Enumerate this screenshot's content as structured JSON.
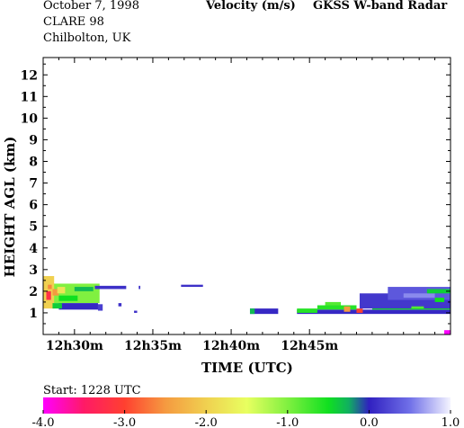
{
  "header": {
    "date": "October   7, 1998",
    "campaign": "CLARE 98",
    "site": "Chilbolton, UK",
    "quantity": "Velocity (m/s)",
    "instrument": "GKSS  W-band Radar"
  },
  "footer": {
    "start_label": "Start:  1228 UTC"
  },
  "colors": {
    "axis": "#000000",
    "background": "#ffffff"
  },
  "chart_data": {
    "type": "heatmap",
    "title": "Velocity (m/s)",
    "xlabel": "TIME (UTC)",
    "ylabel": "HEIGHT AGL (km)",
    "x_unit": "minutes after 12h28 UTC",
    "xlim": [
      0,
      26
    ],
    "ylim": [
      0,
      12.8
    ],
    "x_ticks": [
      {
        "value": 2,
        "label": "12h30m"
      },
      {
        "value": 7,
        "label": "12h35m"
      },
      {
        "value": 12,
        "label": "12h40m"
      },
      {
        "value": 17,
        "label": "12h45m"
      }
    ],
    "y_ticks": [
      1,
      2,
      3,
      4,
      5,
      6,
      7,
      8,
      9,
      10,
      11,
      12
    ],
    "colorbar": {
      "range": [
        -4.0,
        1.0
      ],
      "ticks": [
        "-4.0",
        "-3.0",
        "-2.0",
        "-1.0",
        "0.0",
        "1.0"
      ],
      "stops": [
        {
          "value": -4.0,
          "color": "#ff00ff"
        },
        {
          "value": -3.5,
          "color": "#ff1a66"
        },
        {
          "value": -3.0,
          "color": "#ff4030"
        },
        {
          "value": -2.5,
          "color": "#f59a40"
        },
        {
          "value": -2.0,
          "color": "#f0d050"
        },
        {
          "value": -1.5,
          "color": "#e8ff60"
        },
        {
          "value": -1.0,
          "color": "#80f040"
        },
        {
          "value": -0.5,
          "color": "#10e020"
        },
        {
          "value": -0.25,
          "color": "#10b060"
        },
        {
          "value": 0.0,
          "color": "#3020c0"
        },
        {
          "value": 0.5,
          "color": "#7070e8"
        },
        {
          "value": 1.0,
          "color": "#f4f4ff"
        }
      ]
    },
    "echoes": [
      {
        "t0": 0.0,
        "t1": 3.6,
        "h0": 1.45,
        "h1": 2.35,
        "v": -1.0
      },
      {
        "t0": 0.0,
        "t1": 0.7,
        "h0": 1.2,
        "h1": 2.7,
        "v": -2.0
      },
      {
        "t0": 0.2,
        "t1": 0.5,
        "h0": 1.6,
        "h1": 2.0,
        "v": -3.2
      },
      {
        "t0": 0.6,
        "t1": 1.0,
        "h0": 1.8,
        "h1": 2.1,
        "v": -2.5
      },
      {
        "t0": 0.3,
        "t1": 0.55,
        "h0": 2.1,
        "h1": 2.3,
        "v": -2.6
      },
      {
        "t0": 0.9,
        "t1": 1.4,
        "h0": 1.9,
        "h1": 2.2,
        "v": -1.8
      },
      {
        "t0": 1.0,
        "t1": 2.2,
        "h0": 1.55,
        "h1": 1.8,
        "v": -0.5
      },
      {
        "t0": 2.0,
        "t1": 3.2,
        "h0": 2.0,
        "h1": 2.2,
        "v": -0.3
      },
      {
        "t0": 3.3,
        "t1": 5.3,
        "h0": 2.1,
        "h1": 2.25,
        "v": 0.1
      },
      {
        "t0": 1.0,
        "t1": 3.5,
        "h0": 1.15,
        "h1": 1.45,
        "v": 0.05
      },
      {
        "t0": 0.6,
        "t1": 1.2,
        "h0": 1.2,
        "h1": 1.45,
        "v": -0.4
      },
      {
        "t0": 3.5,
        "t1": 3.8,
        "h0": 1.1,
        "h1": 1.4,
        "v": 0.2
      },
      {
        "t0": 4.8,
        "t1": 5.0,
        "h0": 1.3,
        "h1": 1.45,
        "v": 0.1
      },
      {
        "t0": 5.8,
        "t1": 6.0,
        "h0": 1.0,
        "h1": 1.1,
        "v": 0.1
      },
      {
        "t0": 6.1,
        "t1": 6.2,
        "h0": 2.1,
        "h1": 2.25,
        "v": 0.1
      },
      {
        "t0": 8.8,
        "t1": 10.2,
        "h0": 2.2,
        "h1": 2.3,
        "v": 0.1
      },
      {
        "t0": 13.2,
        "t1": 15.0,
        "h0": 0.95,
        "h1": 1.2,
        "v": 0.05
      },
      {
        "t0": 13.2,
        "t1": 13.5,
        "h0": 0.95,
        "h1": 1.2,
        "v": -0.3
      },
      {
        "t0": 16.2,
        "t1": 26.0,
        "h0": 0.95,
        "h1": 1.15,
        "v": 0.05
      },
      {
        "t0": 16.2,
        "t1": 17.5,
        "h0": 1.0,
        "h1": 1.2,
        "v": -0.6
      },
      {
        "t0": 17.5,
        "t1": 20.0,
        "h0": 1.15,
        "h1": 1.35,
        "v": -0.6
      },
      {
        "t0": 18.0,
        "t1": 19.0,
        "h0": 1.35,
        "h1": 1.5,
        "v": -0.8
      },
      {
        "t0": 19.2,
        "t1": 19.6,
        "h0": 1.05,
        "h1": 1.3,
        "v": -2.5
      },
      {
        "t0": 20.0,
        "t1": 20.4,
        "h0": 1.0,
        "h1": 1.2,
        "v": -3.0
      },
      {
        "t0": 21.0,
        "t1": 26.0,
        "h0": 1.15,
        "h1": 1.3,
        "v": -0.5
      },
      {
        "t0": 20.2,
        "t1": 26.0,
        "h0": 1.2,
        "h1": 1.9,
        "v": 0.15
      },
      {
        "t0": 22.0,
        "t1": 26.0,
        "h0": 1.6,
        "h1": 2.2,
        "v": 0.35
      },
      {
        "t0": 23.0,
        "t1": 25.0,
        "h0": 1.7,
        "h1": 1.9,
        "v": 0.6
      },
      {
        "t0": 24.5,
        "t1": 26.0,
        "h0": 1.9,
        "h1": 2.1,
        "v": -0.4
      },
      {
        "t0": 23.5,
        "t1": 24.3,
        "h0": 1.2,
        "h1": 1.3,
        "v": -0.8
      },
      {
        "t0": 25.0,
        "t1": 25.6,
        "h0": 1.5,
        "h1": 1.7,
        "v": -0.5
      },
      {
        "t0": 25.6,
        "t1": 26.0,
        "h0": 0.0,
        "h1": 0.2,
        "v": -4.0
      }
    ]
  }
}
